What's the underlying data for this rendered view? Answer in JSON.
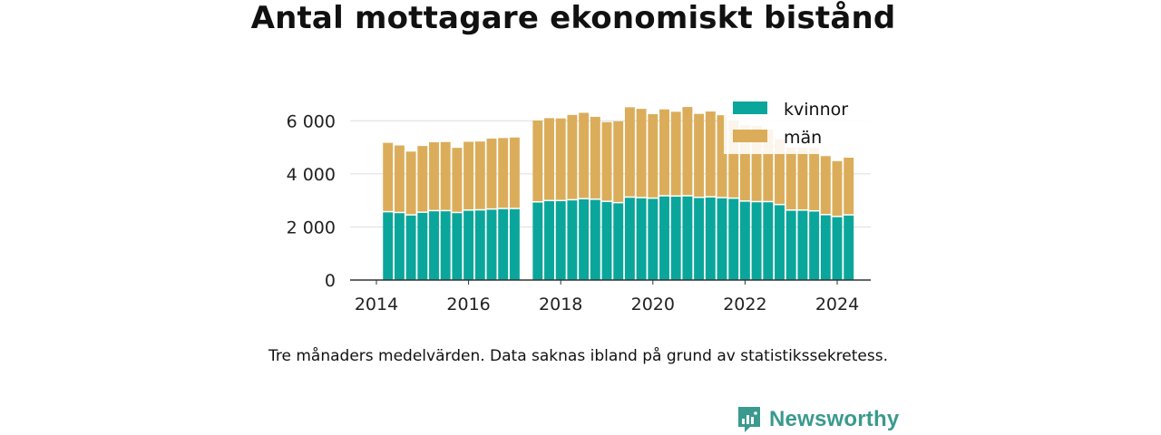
{
  "title": "Antal mottagare ekonomiskt bistånd",
  "caption": "Tre månaders medelvärden. Data saknas ibland på grund av statistikssekretess.",
  "brand": {
    "name": "Newsworthy",
    "icon": "newsworthy-logo-icon",
    "color": "#3a9a8e"
  },
  "chart_data": {
    "type": "bar",
    "stacked": true,
    "title": "Antal mottagare ekonomiskt bistånd",
    "xlabel": "",
    "ylabel": "",
    "ylim": [
      0,
      7000
    ],
    "xlim": [
      2013.75,
      2024.75
    ],
    "x_ticks": [
      2014,
      2016,
      2018,
      2020,
      2022,
      2024
    ],
    "x_tick_labels": [
      "2014",
      "2016",
      "2018",
      "2020",
      "2022",
      "2024"
    ],
    "y_ticks": [
      0,
      2000,
      4000,
      6000
    ],
    "y_tick_labels": [
      "0",
      "2 000",
      "4 000",
      "6 000"
    ],
    "grid": "horizontal",
    "legend": "top-right",
    "x": [
      2014.25,
      2014.5,
      2014.75,
      2015.0,
      2015.25,
      2015.5,
      2015.75,
      2016.0,
      2016.25,
      2016.5,
      2016.75,
      2017.0,
      2017.5,
      2017.75,
      2018.0,
      2018.25,
      2018.5,
      2018.75,
      2019.0,
      2019.25,
      2019.5,
      2019.75,
      2020.0,
      2020.25,
      2020.5,
      2020.75,
      2021.0,
      2021.25,
      2021.5,
      2021.75,
      2022.0,
      2022.25,
      2022.5,
      2022.75,
      2023.0,
      2023.25,
      2023.5,
      2023.75,
      2024.0,
      2024.25
    ],
    "series": [
      {
        "name": "kvinnor",
        "color": "#0ba69b",
        "values": [
          2550,
          2520,
          2430,
          2530,
          2590,
          2590,
          2520,
          2610,
          2620,
          2650,
          2670,
          2670,
          2920,
          2970,
          2970,
          3000,
          3040,
          3020,
          2940,
          2890,
          3100,
          3080,
          3060,
          3150,
          3140,
          3150,
          3090,
          3110,
          3080,
          3060,
          2950,
          2930,
          2930,
          2820,
          2610,
          2610,
          2580,
          2440,
          2370,
          2430
        ]
      },
      {
        "name": "män",
        "color": "#dbad5a",
        "values": [
          2620,
          2550,
          2410,
          2520,
          2600,
          2610,
          2460,
          2600,
          2600,
          2680,
          2680,
          2700,
          3090,
          3130,
          3120,
          3220,
          3260,
          3130,
          3010,
          3090,
          3410,
          3370,
          3190,
          3280,
          3200,
          3370,
          3170,
          3240,
          3130,
          2950,
          2880,
          2880,
          2740,
          2480,
          2380,
          2380,
          2400,
          2230,
          2110,
          2180
        ]
      }
    ]
  }
}
